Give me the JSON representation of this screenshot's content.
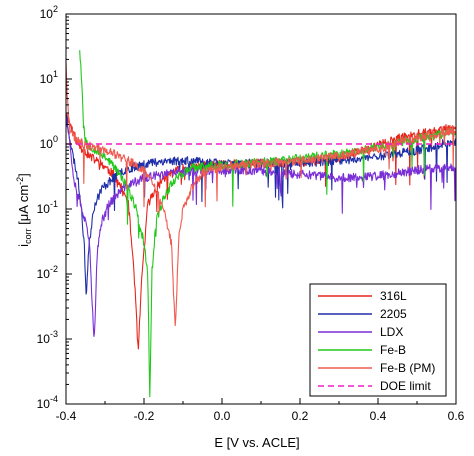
{
  "chart_data": {
    "type": "line",
    "xlabel": "E [V vs. ACLE]",
    "ylabel_main": "i",
    "ylabel_sub": "corr",
    "ylabel_unit": " [μA cm",
    "ylabel_sup": "-2",
    "ylabel_close": "]",
    "y_scale": "log",
    "xlim": [
      -0.4,
      0.6
    ],
    "ylim": [
      0.0001,
      100
    ],
    "x_ticks": [
      {
        "value": -0.4,
        "label": "-0.4"
      },
      {
        "value": -0.2,
        "label": "-0.2"
      },
      {
        "value": 0.0,
        "label": "0.0"
      },
      {
        "value": 0.2,
        "label": "0.2"
      },
      {
        "value": 0.4,
        "label": "0.4"
      },
      {
        "value": 0.6,
        "label": "0.6"
      }
    ],
    "y_ticks": [
      {
        "value": 100,
        "base": "10",
        "exp": "2"
      },
      {
        "value": 10,
        "base": "10",
        "exp": "1"
      },
      {
        "value": 1,
        "base": "10",
        "exp": "0"
      },
      {
        "value": 0.1,
        "base": "10",
        "exp": "-1"
      },
      {
        "value": 0.01,
        "base": "10",
        "exp": "-2"
      },
      {
        "value": 0.001,
        "base": "10",
        "exp": "-3"
      },
      {
        "value": 0.0001,
        "base": "10",
        "exp": "-4"
      }
    ],
    "grid": false,
    "legend_position": "bottom-right",
    "series": [
      {
        "name": "316L",
        "color": "#e8251d",
        "style": "solid",
        "seed": 11,
        "points": [
          [
            -0.4,
            3.0
          ],
          [
            -0.37,
            1.0
          ],
          [
            -0.34,
            0.65
          ],
          [
            -0.3,
            0.45
          ],
          [
            -0.27,
            0.3
          ],
          [
            -0.24,
            0.12
          ],
          [
            -0.225,
            0.01
          ],
          [
            -0.215,
            0.0006
          ],
          [
            -0.205,
            0.01
          ],
          [
            -0.19,
            0.12
          ],
          [
            -0.17,
            0.2
          ],
          [
            -0.15,
            0.3
          ],
          [
            -0.12,
            0.38
          ],
          [
            -0.08,
            0.45
          ],
          [
            0.0,
            0.48
          ],
          [
            0.1,
            0.5
          ],
          [
            0.2,
            0.52
          ],
          [
            0.3,
            0.6
          ],
          [
            0.35,
            0.75
          ],
          [
            0.4,
            0.95
          ],
          [
            0.45,
            1.2
          ],
          [
            0.5,
            1.4
          ],
          [
            0.55,
            1.6
          ],
          [
            0.6,
            1.8
          ]
        ]
      },
      {
        "name": "2205",
        "color": "#1f2fa8",
        "style": "solid",
        "seed": 23,
        "points": [
          [
            -0.4,
            3.0
          ],
          [
            -0.385,
            0.8
          ],
          [
            -0.37,
            0.3
          ],
          [
            -0.36,
            0.1
          ],
          [
            -0.352,
            0.02
          ],
          [
            -0.348,
            0.004
          ],
          [
            -0.343,
            0.02
          ],
          [
            -0.33,
            0.1
          ],
          [
            -0.31,
            0.2
          ],
          [
            -0.28,
            0.3
          ],
          [
            -0.25,
            0.4
          ],
          [
            -0.2,
            0.5
          ],
          [
            -0.15,
            0.55
          ],
          [
            -0.1,
            0.55
          ],
          [
            0.0,
            0.5
          ],
          [
            0.1,
            0.5
          ],
          [
            0.2,
            0.52
          ],
          [
            0.3,
            0.55
          ],
          [
            0.4,
            0.65
          ],
          [
            0.5,
            0.8
          ],
          [
            0.55,
            0.95
          ],
          [
            0.6,
            1.1
          ]
        ]
      },
      {
        "name": "LDX",
        "color": "#7a2fd6",
        "style": "solid",
        "seed": 37,
        "points": [
          [
            -0.4,
            3.0
          ],
          [
            -0.39,
            1.0
          ],
          [
            -0.38,
            0.3
          ],
          [
            -0.36,
            0.1
          ],
          [
            -0.35,
            0.06
          ],
          [
            -0.34,
            0.03
          ],
          [
            -0.333,
            0.004
          ],
          [
            -0.328,
            0.0008
          ],
          [
            -0.32,
            0.02
          ],
          [
            -0.31,
            0.06
          ],
          [
            -0.29,
            0.12
          ],
          [
            -0.25,
            0.22
          ],
          [
            -0.2,
            0.3
          ],
          [
            -0.1,
            0.38
          ],
          [
            0.0,
            0.4
          ],
          [
            0.1,
            0.38
          ],
          [
            0.2,
            0.34
          ],
          [
            0.3,
            0.3
          ],
          [
            0.4,
            0.32
          ],
          [
            0.5,
            0.4
          ],
          [
            0.6,
            0.45
          ]
        ]
      },
      {
        "name": "Fe-B",
        "color": "#22c81a",
        "style": "solid",
        "seed": 53,
        "points": [
          [
            -0.365,
            30
          ],
          [
            -0.36,
            10
          ],
          [
            -0.355,
            2.0
          ],
          [
            -0.35,
            1.1
          ],
          [
            -0.33,
            0.85
          ],
          [
            -0.3,
            0.65
          ],
          [
            -0.27,
            0.4
          ],
          [
            -0.24,
            0.2
          ],
          [
            -0.22,
            0.1
          ],
          [
            -0.2,
            0.03
          ],
          [
            -0.19,
            0.01
          ],
          [
            -0.185,
            0.0001
          ],
          [
            -0.18,
            0.01
          ],
          [
            -0.17,
            0.06
          ],
          [
            -0.15,
            0.15
          ],
          [
            -0.12,
            0.3
          ],
          [
            -0.08,
            0.42
          ],
          [
            0.0,
            0.48
          ],
          [
            0.1,
            0.52
          ],
          [
            0.2,
            0.6
          ],
          [
            0.3,
            0.7
          ],
          [
            0.4,
            0.9
          ],
          [
            0.45,
            1.05
          ],
          [
            0.5,
            1.2
          ],
          [
            0.55,
            1.35
          ],
          [
            0.6,
            1.55
          ]
        ]
      },
      {
        "name": "Fe-B (PM)",
        "color": "#f05a50",
        "style": "solid",
        "seed": 71,
        "points": [
          [
            -0.4,
            20
          ],
          [
            -0.397,
            5.0
          ],
          [
            -0.39,
            1.6
          ],
          [
            -0.37,
            1.1
          ],
          [
            -0.33,
            0.9
          ],
          [
            -0.3,
            0.8
          ],
          [
            -0.25,
            0.6
          ],
          [
            -0.2,
            0.4
          ],
          [
            -0.17,
            0.2
          ],
          [
            -0.15,
            0.1
          ],
          [
            -0.13,
            0.03
          ],
          [
            -0.12,
            0.0015
          ],
          [
            -0.11,
            0.04
          ],
          [
            -0.1,
            0.1
          ],
          [
            -0.08,
            0.2
          ],
          [
            -0.05,
            0.35
          ],
          [
            0.0,
            0.45
          ],
          [
            0.1,
            0.5
          ],
          [
            0.2,
            0.55
          ],
          [
            0.3,
            0.65
          ],
          [
            0.4,
            0.85
          ],
          [
            0.45,
            1.05
          ],
          [
            0.5,
            1.25
          ],
          [
            0.55,
            1.45
          ],
          [
            0.6,
            1.7
          ]
        ]
      },
      {
        "name": "DOE limit",
        "color": "#f01ec8",
        "style": "dashed",
        "points": [
          [
            -0.4,
            1.0
          ],
          [
            0.6,
            1.0
          ]
        ]
      }
    ]
  }
}
